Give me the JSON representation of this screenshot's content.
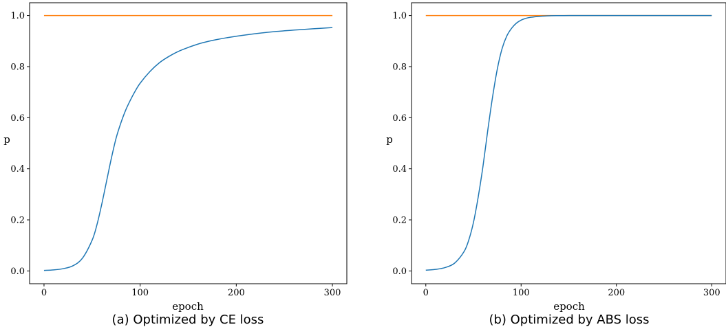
{
  "chart_data": [
    {
      "type": "line",
      "caption": "(a) Optimized by CE loss",
      "xlabel": "epoch",
      "ylabel": "p",
      "xlim": [
        -15,
        315
      ],
      "ylim": [
        -0.05,
        1.05
      ],
      "xticks": [
        0,
        100,
        200,
        300
      ],
      "xtick_labels": [
        "0",
        "100",
        "200",
        "300"
      ],
      "yticks": [
        0.0,
        0.2,
        0.4,
        0.6,
        0.8,
        1.0
      ],
      "ytick_labels": [
        "0.0",
        "0.2",
        "0.4",
        "0.6",
        "0.8",
        "1.0"
      ],
      "grid": false,
      "series": [
        {
          "color": "#ff7f0e",
          "x": [
            0,
            300
          ],
          "y": [
            1.0,
            1.0
          ]
        },
        {
          "color": "#1f77b4",
          "x": [
            0,
            10,
            20,
            30,
            40,
            50,
            55,
            60,
            65,
            70,
            75,
            80,
            85,
            90,
            95,
            100,
            110,
            120,
            130,
            140,
            150,
            160,
            170,
            180,
            190,
            200,
            220,
            240,
            260,
            280,
            300
          ],
          "y": [
            0.002,
            0.004,
            0.009,
            0.02,
            0.05,
            0.12,
            0.18,
            0.26,
            0.35,
            0.44,
            0.52,
            0.58,
            0.63,
            0.67,
            0.705,
            0.735,
            0.78,
            0.815,
            0.84,
            0.86,
            0.875,
            0.888,
            0.898,
            0.906,
            0.913,
            0.919,
            0.929,
            0.937,
            0.943,
            0.948,
            0.953
          ]
        }
      ]
    },
    {
      "type": "line",
      "caption": "(b) Optimized by ABS loss",
      "xlabel": "epoch",
      "ylabel": "p",
      "xlim": [
        -15,
        315
      ],
      "ylim": [
        -0.05,
        1.05
      ],
      "xticks": [
        0,
        100,
        200,
        300
      ],
      "xtick_labels": [
        "0",
        "100",
        "200",
        "300"
      ],
      "yticks": [
        0.0,
        0.2,
        0.4,
        0.6,
        0.8,
        1.0
      ],
      "ytick_labels": [
        "0.0",
        "0.2",
        "0.4",
        "0.6",
        "0.8",
        "1.0"
      ],
      "grid": false,
      "series": [
        {
          "color": "#ff7f0e",
          "x": [
            0,
            300
          ],
          "y": [
            1.0,
            1.0
          ]
        },
        {
          "color": "#1f77b4",
          "x": [
            0,
            10,
            20,
            30,
            40,
            45,
            50,
            55,
            60,
            65,
            70,
            75,
            80,
            85,
            90,
            95,
            100,
            105,
            110,
            120,
            130,
            140,
            150,
            160,
            180,
            200,
            250,
            300
          ],
          "y": [
            0.003,
            0.006,
            0.013,
            0.03,
            0.075,
            0.12,
            0.19,
            0.29,
            0.41,
            0.55,
            0.68,
            0.79,
            0.87,
            0.92,
            0.95,
            0.97,
            0.982,
            0.989,
            0.993,
            0.997,
            0.999,
            0.9995,
            0.9998,
            1.0,
            1.0,
            1.0,
            1.0,
            1.0
          ]
        }
      ]
    }
  ]
}
